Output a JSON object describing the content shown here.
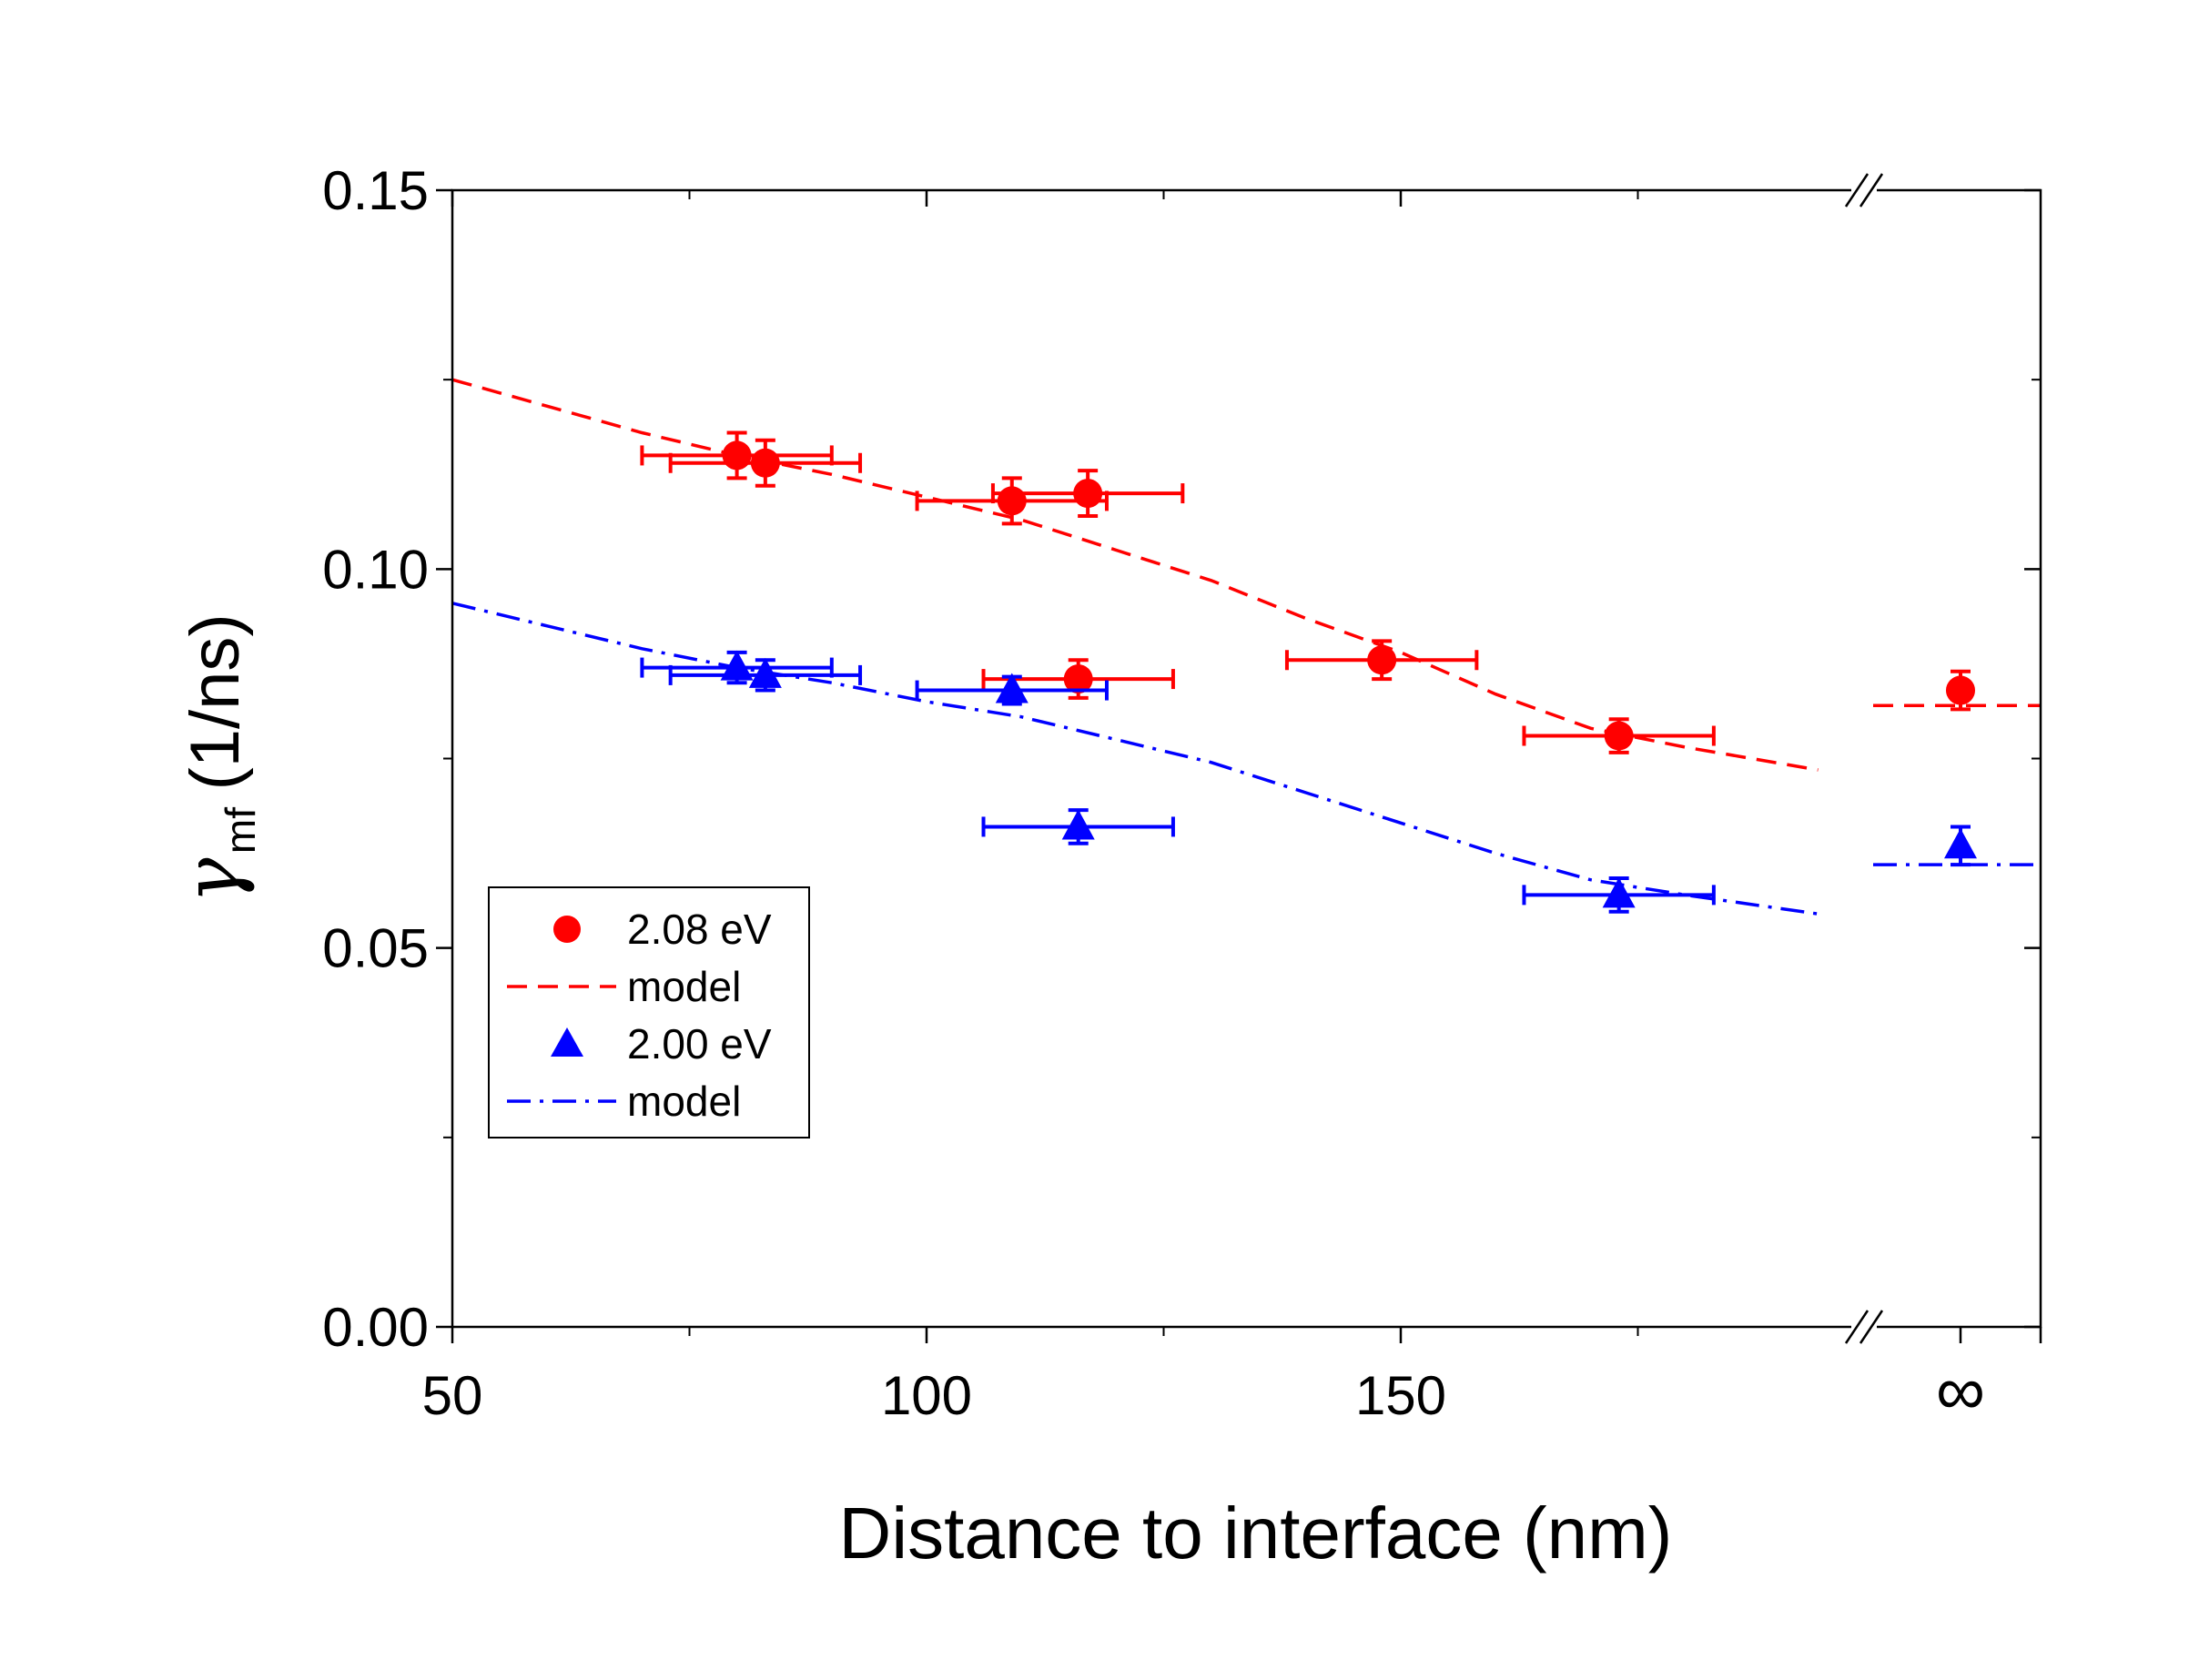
{
  "chart_data": {
    "type": "scatter",
    "xlabel": "Distance to interface (nm)",
    "ylabel": {
      "symbol": "γ",
      "subscript": "mf",
      "unit": "(1/ns)"
    },
    "xlim": [
      50,
      200
    ],
    "x_break_after": 195,
    "x_infinity_label": "∞",
    "ylim": [
      0,
      0.15
    ],
    "x_ticks": [
      {
        "value": 50,
        "label": "50"
      },
      {
        "value": 100,
        "label": "100"
      },
      {
        "value": 150,
        "label": "150"
      }
    ],
    "y_ticks": [
      {
        "value": 0.0,
        "label": "0.00"
      },
      {
        "value": 0.05,
        "label": "0.05"
      },
      {
        "value": 0.1,
        "label": "0.10"
      },
      {
        "value": 0.15,
        "label": "0.15"
      }
    ],
    "grid": false,
    "legend_position": "lower-left",
    "series": [
      {
        "name": "2.08 eV",
        "kind": "points",
        "marker": "circle",
        "color": "#ff0000",
        "points": [
          {
            "x": 80,
            "y": 0.115,
            "xerr": 10,
            "yerr": 0.003
          },
          {
            "x": 83,
            "y": 0.114,
            "xerr": 10,
            "yerr": 0.003
          },
          {
            "x": 109,
            "y": 0.109,
            "xerr": 10,
            "yerr": 0.003
          },
          {
            "x": 117,
            "y": 0.11,
            "xerr": 10,
            "yerr": 0.003
          },
          {
            "x": 116,
            "y": 0.0855,
            "xerr": 10,
            "yerr": 0.0025
          },
          {
            "x": 148,
            "y": 0.088,
            "xerr": 10,
            "yerr": 0.0025
          },
          {
            "x": 173,
            "y": 0.078,
            "xerr": 10,
            "yerr": 0.0022
          },
          {
            "x": "∞",
            "y": 0.084,
            "xerr": 0,
            "yerr": 0.0025
          }
        ]
      },
      {
        "name": "model",
        "kind": "line",
        "style": "dashed",
        "color": "#ff0000",
        "points": [
          [
            50,
            0.125
          ],
          [
            60,
            0.1215
          ],
          [
            70,
            0.118
          ],
          [
            80,
            0.115
          ],
          [
            90,
            0.1125
          ],
          [
            100,
            0.1095
          ],
          [
            110,
            0.1065
          ],
          [
            120,
            0.1025
          ],
          [
            130,
            0.0985
          ],
          [
            140,
            0.0935
          ],
          [
            150,
            0.089
          ],
          [
            160,
            0.0835
          ],
          [
            170,
            0.079
          ],
          [
            180,
            0.0765
          ],
          [
            194,
            0.0735
          ]
        ],
        "infinity_value": 0.082
      },
      {
        "name": "2.00 eV",
        "kind": "points",
        "marker": "triangle",
        "color": "#0000ff",
        "points": [
          {
            "x": 80,
            "y": 0.087,
            "xerr": 10,
            "yerr": 0.002
          },
          {
            "x": 83,
            "y": 0.086,
            "xerr": 10,
            "yerr": 0.002
          },
          {
            "x": 109,
            "y": 0.084,
            "xerr": 10,
            "yerr": 0.0018
          },
          {
            "x": 116,
            "y": 0.066,
            "xerr": 10,
            "yerr": 0.0022
          },
          {
            "x": 173,
            "y": 0.057,
            "xerr": 10,
            "yerr": 0.0022
          },
          {
            "x": "∞",
            "y": 0.0635,
            "xerr": 0,
            "yerr": 0.0025
          }
        ]
      },
      {
        "name": "model",
        "kind": "line",
        "style": "dashdot",
        "color": "#0000ff",
        "points": [
          [
            50,
            0.0955
          ],
          [
            60,
            0.0925
          ],
          [
            70,
            0.0895
          ],
          [
            80,
            0.087
          ],
          [
            90,
            0.085
          ],
          [
            100,
            0.0825
          ],
          [
            110,
            0.0805
          ],
          [
            120,
            0.0775
          ],
          [
            130,
            0.0745
          ],
          [
            140,
            0.0705
          ],
          [
            150,
            0.0665
          ],
          [
            160,
            0.0625
          ],
          [
            170,
            0.059
          ],
          [
            180,
            0.057
          ],
          [
            194,
            0.0545
          ]
        ],
        "infinity_value": 0.061
      }
    ]
  }
}
